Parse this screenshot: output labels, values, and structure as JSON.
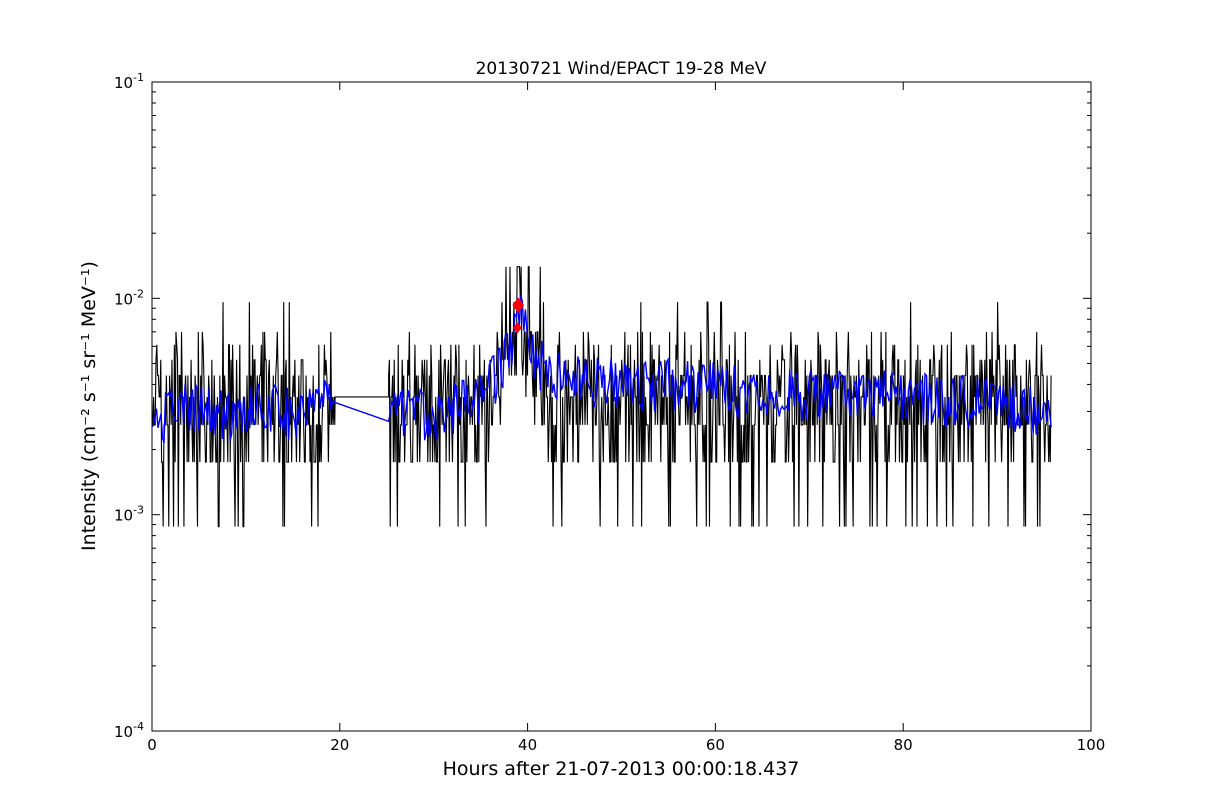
{
  "chart_data": {
    "type": "line",
    "title": "20130721 Wind/EPACT 19-28 MeV",
    "xlabel": "Hours after 21-07-2013 00:00:18.437",
    "ylabel": "Intensity (cm⁻² s⁻¹ sr⁻¹ MeV⁻¹)",
    "xlim": [
      0,
      100
    ],
    "ylim": [
      0.0001,
      0.1
    ],
    "yscale": "log",
    "grid": false,
    "x_ticks": [
      0,
      20,
      40,
      60,
      80,
      100
    ],
    "x_tick_labels": [
      "0",
      "20",
      "40",
      "60",
      "80",
      "100"
    ],
    "y_ticks": [
      0.0001,
      0.001,
      0.01,
      0.1
    ],
    "y_tick_labels": [
      {
        "base": "10",
        "exp": "-4"
      },
      {
        "base": "10",
        "exp": "-3"
      },
      {
        "base": "10",
        "exp": "-2"
      },
      {
        "base": "10",
        "exp": "-1"
      }
    ],
    "data_gap_hours": [
      19.5,
      25.2
    ],
    "series": [
      {
        "style": "raw",
        "color": "#000000",
        "description_level_values": [
          0.00088,
          0.00175,
          0.0026,
          0.0035,
          0.0044,
          0.0052,
          0.0061,
          0.007,
          0.0096,
          0.014
        ],
        "x": [
          0,
          19.5,
          25.2,
          95.8
        ],
        "baseline_mean": 0.0033,
        "peak_x": 39.0,
        "peak_y": 0.014
      },
      {
        "style": "smoothed",
        "color": "#0000ff",
        "x": [
          0,
          2,
          4,
          6,
          8,
          10,
          12,
          14,
          16,
          18,
          19.5,
          25.2,
          27,
          29,
          31,
          33,
          35,
          36,
          37,
          38,
          39,
          40,
          41,
          43,
          45,
          50,
          55,
          60,
          65,
          70,
          75,
          80,
          85,
          90,
          95.8
        ],
        "y": [
          0.0025,
          0.0032,
          0.0033,
          0.0031,
          0.0029,
          0.0031,
          0.0034,
          0.003,
          0.0032,
          0.0033,
          0.0033,
          0.0028,
          0.0031,
          0.003,
          0.0031,
          0.0033,
          0.0036,
          0.0041,
          0.0048,
          0.0058,
          0.0085,
          0.0072,
          0.0052,
          0.0045,
          0.0043,
          0.0042,
          0.0041,
          0.004,
          0.0038,
          0.0037,
          0.0037,
          0.0036,
          0.0035,
          0.0034,
          0.0031
        ]
      }
    ],
    "markers": [
      {
        "x": 39.0,
        "y": 0.0093,
        "color": "#ff0000",
        "shape": "diamond"
      },
      {
        "x": 38.9,
        "y": 0.0073,
        "color": "#ff0000",
        "shape": "diamond"
      }
    ]
  }
}
